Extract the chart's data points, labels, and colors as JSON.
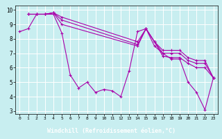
{
  "xlabel": "Windchill (Refroidissement éolien,°C)",
  "xlim": [
    -0.5,
    23.5
  ],
  "ylim": [
    2.8,
    10.3
  ],
  "yticks": [
    3,
    4,
    5,
    6,
    7,
    8,
    9,
    10
  ],
  "xticks": [
    0,
    1,
    2,
    3,
    4,
    5,
    6,
    7,
    8,
    9,
    10,
    11,
    12,
    13,
    14,
    15,
    16,
    17,
    18,
    19,
    20,
    21,
    22,
    23
  ],
  "background_color": "#c8eef0",
  "grid_color": "#ffffff",
  "line_color": "#aa00aa",
  "xlabel_bg": "#330033",
  "xlabel_fg": "#ffffff",
  "lines": [
    {
      "x": [
        0,
        1,
        2,
        3,
        4,
        5,
        6,
        7,
        8,
        9,
        10,
        11,
        12,
        13,
        14,
        15,
        16,
        17,
        18,
        19,
        20,
        21,
        22,
        23
      ],
      "y": [
        8.5,
        8.7,
        9.7,
        9.7,
        9.7,
        8.4,
        5.5,
        4.6,
        5.0,
        4.3,
        4.5,
        4.4,
        4.0,
        5.8,
        8.5,
        8.7,
        7.5,
        7.0,
        6.6,
        6.6,
        5.0,
        4.3,
        3.1,
        5.3
      ]
    },
    {
      "x": [
        1,
        2,
        3,
        4,
        5,
        14,
        15,
        16,
        17,
        18,
        19,
        20,
        21,
        22,
        23
      ],
      "y": [
        9.7,
        9.7,
        9.7,
        9.8,
        9.5,
        7.8,
        8.7,
        7.8,
        7.2,
        7.2,
        7.2,
        6.7,
        6.5,
        6.5,
        5.3
      ]
    },
    {
      "x": [
        1,
        2,
        3,
        4,
        5,
        14,
        15,
        16,
        17,
        18,
        19,
        20,
        21,
        22,
        23
      ],
      "y": [
        9.7,
        9.7,
        9.7,
        9.8,
        9.3,
        7.6,
        8.7,
        7.8,
        7.0,
        7.0,
        7.0,
        6.5,
        6.3,
        6.3,
        5.3
      ]
    },
    {
      "x": [
        1,
        2,
        3,
        4,
        5,
        14,
        15,
        16,
        17,
        18,
        19,
        20,
        21,
        22,
        23
      ],
      "y": [
        9.7,
        9.7,
        9.7,
        9.8,
        9.0,
        7.5,
        8.7,
        7.8,
        6.8,
        6.7,
        6.7,
        6.3,
        6.0,
        6.0,
        5.3
      ]
    }
  ]
}
